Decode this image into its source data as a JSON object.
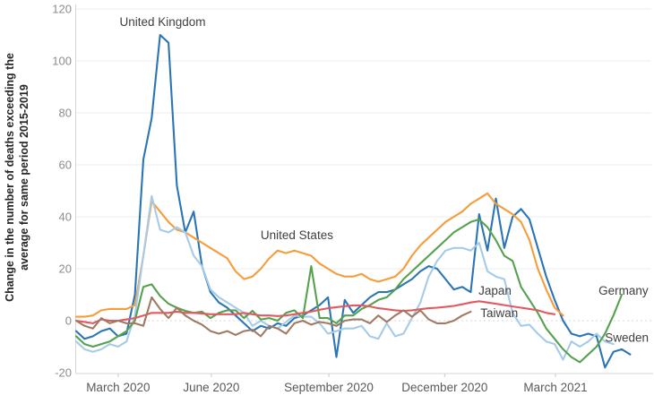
{
  "chart_data": {
    "type": "line",
    "title": "",
    "ylabel_lines": [
      "Change in the number of deaths exceeding the",
      "average for same period 2015-2019"
    ],
    "xlabel": "",
    "ylim": [
      -23,
      122
    ],
    "y_ticks": [
      -20,
      0,
      20,
      40,
      60,
      80,
      100,
      120
    ],
    "grid": "horizontal, zero line dotted",
    "legend_position": "inline labels next to lines",
    "x_unit": "weeks since late January 2020",
    "x_ticks": [
      {
        "label": "March 2020",
        "week": 5.0
      },
      {
        "label": "June 2020",
        "week": 16.1
      },
      {
        "label": "September 2020",
        "week": 30.1
      },
      {
        "label": "December 2020",
        "week": 43.9
      },
      {
        "label": "March 2021",
        "week": 57.1
      }
    ],
    "series": [
      {
        "name": "United Kingdom",
        "color": "#2C75B5",
        "label": "United Kingdom",
        "label_week": 10.3,
        "label_value": 115,
        "label_anchor": "middle",
        "values": [
          -4,
          -7,
          -6,
          -4,
          -3,
          -6,
          -5,
          10,
          62,
          78,
          110,
          107,
          52,
          34,
          42,
          21,
          11,
          7,
          5,
          2,
          -1,
          -4,
          -2,
          -3,
          -1,
          -2,
          1,
          2,
          4,
          6,
          9,
          -14,
          8,
          3,
          6,
          9,
          11,
          11,
          12,
          14,
          16,
          19,
          21,
          20,
          16,
          12,
          13,
          11,
          41,
          27,
          47,
          28,
          40,
          43,
          39,
          28,
          17,
          8,
          0,
          -5,
          -6,
          -5,
          -6,
          -18,
          -12,
          -11,
          -13
        ]
      },
      {
        "name": "United States",
        "color": "#F79C3B",
        "label": "United States",
        "label_week": 26.3,
        "label_value": 33,
        "label_anchor": "middle",
        "values": [
          1.5,
          1.5,
          2,
          4,
          4.5,
          4.5,
          4.5,
          6,
          25,
          46,
          42,
          38,
          35,
          34,
          32,
          30,
          28,
          26,
          24,
          19,
          16,
          17,
          20,
          24,
          27,
          26,
          27,
          26,
          25,
          22,
          20,
          18,
          17,
          17,
          18,
          16,
          15,
          16,
          17,
          20,
          25,
          29,
          32,
          35,
          38,
          40,
          42,
          45,
          47,
          49,
          45,
          43,
          41,
          38,
          31,
          20,
          12,
          5,
          2
        ]
      },
      {
        "name": "Sweden",
        "color": "#A6CBE8",
        "label": "Sweden",
        "label_week": 65.6,
        "label_value": -6.5,
        "label_anchor": "middle",
        "values": [
          -8,
          -11,
          -12,
          -11,
          -9,
          -10,
          -8,
          2,
          25,
          48,
          35,
          34,
          36,
          34,
          25,
          21,
          12,
          9,
          7,
          5,
          3,
          -2,
          0,
          -2,
          -3,
          -0.5,
          2,
          1.5,
          1.5,
          -1,
          -5,
          -4,
          -3,
          -3,
          -2,
          -6,
          -7,
          -1,
          -6,
          -5,
          1,
          7,
          17,
          23,
          27,
          28,
          28,
          27,
          30,
          19,
          17,
          16,
          3,
          -2,
          -1.5,
          -5,
          -8,
          -9,
          -15,
          -8,
          -10,
          -8,
          -5,
          -8,
          -9
        ]
      },
      {
        "name": "Germany",
        "color": "#55A14E",
        "label": "Germany",
        "label_week": 65.2,
        "label_value": 11.6,
        "label_anchor": "middle",
        "values": [
          -6,
          -9,
          -10,
          -9,
          -8,
          -6,
          -4,
          0,
          13,
          14,
          9.5,
          6.5,
          5,
          3.8,
          3,
          3.5,
          1,
          3,
          4,
          4,
          1,
          3.8,
          0.5,
          1,
          0,
          3,
          4,
          1,
          21,
          1,
          1,
          -1,
          2,
          2,
          4.5,
          6,
          8,
          9,
          12,
          16,
          19,
          22,
          25,
          28,
          31,
          34,
          36,
          38,
          39,
          36,
          31,
          25,
          23,
          13,
          8,
          3,
          -3,
          -7,
          -11,
          -14,
          -16,
          -13,
          -10,
          -5,
          2,
          10
        ]
      },
      {
        "name": "Japan",
        "color": "#E25A60",
        "label": "Japan",
        "label_week": 49.9,
        "label_value": 11.5,
        "label_anchor": "middle",
        "values": [
          0,
          -0.5,
          -1,
          0.5,
          0,
          0,
          0.5,
          1,
          2,
          3,
          3,
          3,
          3.5,
          3,
          3,
          2.8,
          2.5,
          2.5,
          2.5,
          2.5,
          3,
          2.5,
          2,
          2,
          1.8,
          2,
          2.5,
          3,
          3.5,
          4.2,
          4.8,
          5.2,
          5.6,
          5.9,
          5.9,
          5.5,
          4.8,
          4.4,
          4,
          3.8,
          4,
          4.4,
          4.8,
          5,
          5.3,
          5.7,
          6.3,
          7,
          7.5,
          7,
          6.5,
          6,
          5.5,
          5,
          4.5,
          4,
          3,
          2.5
        ]
      },
      {
        "name": "Taiwan",
        "color": "#A07A63",
        "label": "Taiwan",
        "label_week": 50.4,
        "label_value": 2.9,
        "label_anchor": "middle",
        "values": [
          0,
          -2,
          -3,
          1,
          -1,
          0,
          -1,
          -1,
          -2,
          9,
          4.5,
          1,
          5,
          2,
          0,
          -1.5,
          -4,
          -5,
          -4,
          -5.5,
          -4,
          -3.5,
          -6,
          -2,
          -3,
          -5,
          -1,
          0,
          -1.5,
          -0.5,
          -1,
          -2,
          0,
          0.5,
          0.5,
          -1,
          2,
          -0.5,
          2,
          4,
          1.5,
          4,
          0.5,
          -1,
          -1,
          0,
          2,
          3.5
        ]
      }
    ],
    "style": {
      "grid_color": "#ECECEC",
      "zero_line_color": "#D9D9D9",
      "spine_color": "#D6D6D6",
      "tick_color": "#C9C9C9",
      "y_tick_label_color": "#8C8C8C",
      "x_tick_label_color": "#595959",
      "series_label_color": "#3F3F3F",
      "ylabel_color": "#262626",
      "background": "#FFFFFF"
    }
  }
}
